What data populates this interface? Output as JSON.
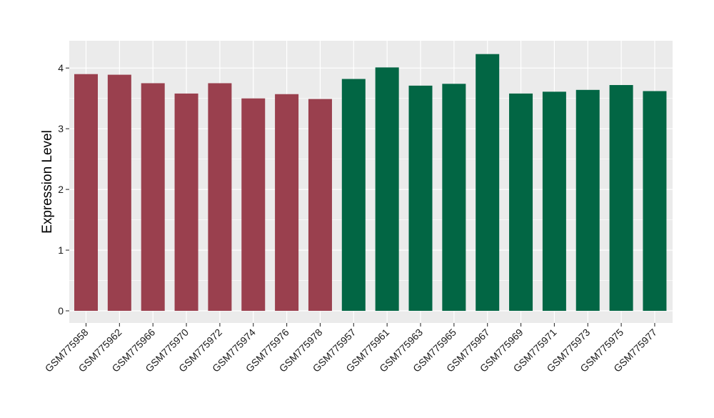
{
  "chart_data": {
    "type": "bar",
    "title": "",
    "xlabel": "",
    "ylabel": "Expression Level",
    "ylim": [
      -0.2,
      4.45
    ],
    "yticks": [
      0,
      1,
      2,
      3,
      4
    ],
    "grid": true,
    "legend": "none",
    "colors": {
      "panel_background": "#EBEBEB",
      "grid_major": "#FFFFFF",
      "group_a": "#9A404E",
      "group_b": "#026644"
    },
    "categories": [
      "GSM775958",
      "GSM775962",
      "GSM775966",
      "GSM775970",
      "GSM775972",
      "GSM775974",
      "GSM775976",
      "GSM775978",
      "GSM775957",
      "GSM775961",
      "GSM775963",
      "GSM775965",
      "GSM775967",
      "GSM775969",
      "GSM775971",
      "GSM775973",
      "GSM775975",
      "GSM775977"
    ],
    "values": [
      3.9,
      3.89,
      3.75,
      3.58,
      3.75,
      3.5,
      3.57,
      3.49,
      3.82,
      4.01,
      3.71,
      3.74,
      4.23,
      3.58,
      3.61,
      3.64,
      3.72,
      3.62
    ],
    "bar_groups": [
      "a",
      "a",
      "a",
      "a",
      "a",
      "a",
      "a",
      "a",
      "b",
      "b",
      "b",
      "b",
      "b",
      "b",
      "b",
      "b",
      "b",
      "b"
    ]
  }
}
